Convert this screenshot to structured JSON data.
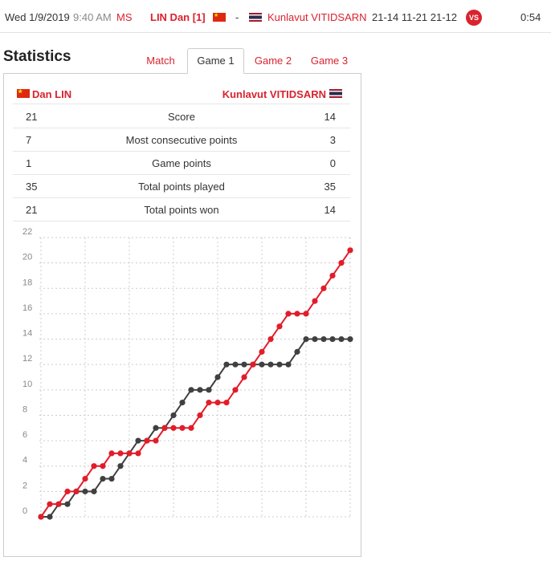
{
  "match": {
    "date": "Wed 1/9/2019",
    "time": "9:40 AM",
    "category": "MS",
    "player1": "LIN Dan [1]",
    "separator": "-",
    "player2": "Kunlavut VITIDSARN",
    "scores": "21-14 11-21 21-12",
    "vs": "VS",
    "duration": "0:54"
  },
  "heading": "Statistics",
  "tabs": [
    {
      "label": "Match"
    },
    {
      "label": "Game 1"
    },
    {
      "label": "Game 2"
    },
    {
      "label": "Game 3"
    }
  ],
  "active_tab": "Game 1",
  "players": {
    "left": "Dan LIN",
    "right": "Kunlavut VITIDSARN"
  },
  "stats": [
    {
      "left": "21",
      "label": "Score",
      "right": "14"
    },
    {
      "left": "7",
      "label": "Most consecutive points",
      "right": "3"
    },
    {
      "left": "1",
      "label": "Game points",
      "right": "0"
    },
    {
      "left": "35",
      "label": "Total points played",
      "right": "35"
    },
    {
      "left": "21",
      "label": "Total points won",
      "right": "14"
    }
  ],
  "colors": {
    "accent": "#d9232e",
    "player1_line": "#e21d2a",
    "player2_line": "#404040"
  },
  "chart_data": {
    "type": "line",
    "title": "",
    "xlabel": "",
    "ylabel": "",
    "ylim": [
      0,
      22
    ],
    "yticks": [
      "0",
      "2",
      "4",
      "6",
      "8",
      "10",
      "12",
      "14",
      "16",
      "18",
      "20",
      "22"
    ],
    "grid": true,
    "series": [
      {
        "color": "#e21d2a",
        "values": [
          0,
          1,
          1,
          2,
          2,
          3,
          4,
          4,
          5,
          5,
          5,
          5,
          6,
          6,
          7,
          7,
          7,
          7,
          8,
          9,
          9,
          9,
          10,
          11,
          12,
          13,
          14,
          15,
          16,
          16,
          16,
          17,
          18,
          19,
          20,
          21
        ]
      },
      {
        "color": "#404040",
        "values": [
          0,
          0,
          1,
          1,
          2,
          2,
          2,
          3,
          3,
          4,
          5,
          6,
          6,
          7,
          7,
          8,
          9,
          10,
          10,
          10,
          11,
          12,
          12,
          12,
          12,
          12,
          12,
          12,
          12,
          13,
          14,
          14,
          14,
          14,
          14,
          14
        ]
      }
    ]
  }
}
